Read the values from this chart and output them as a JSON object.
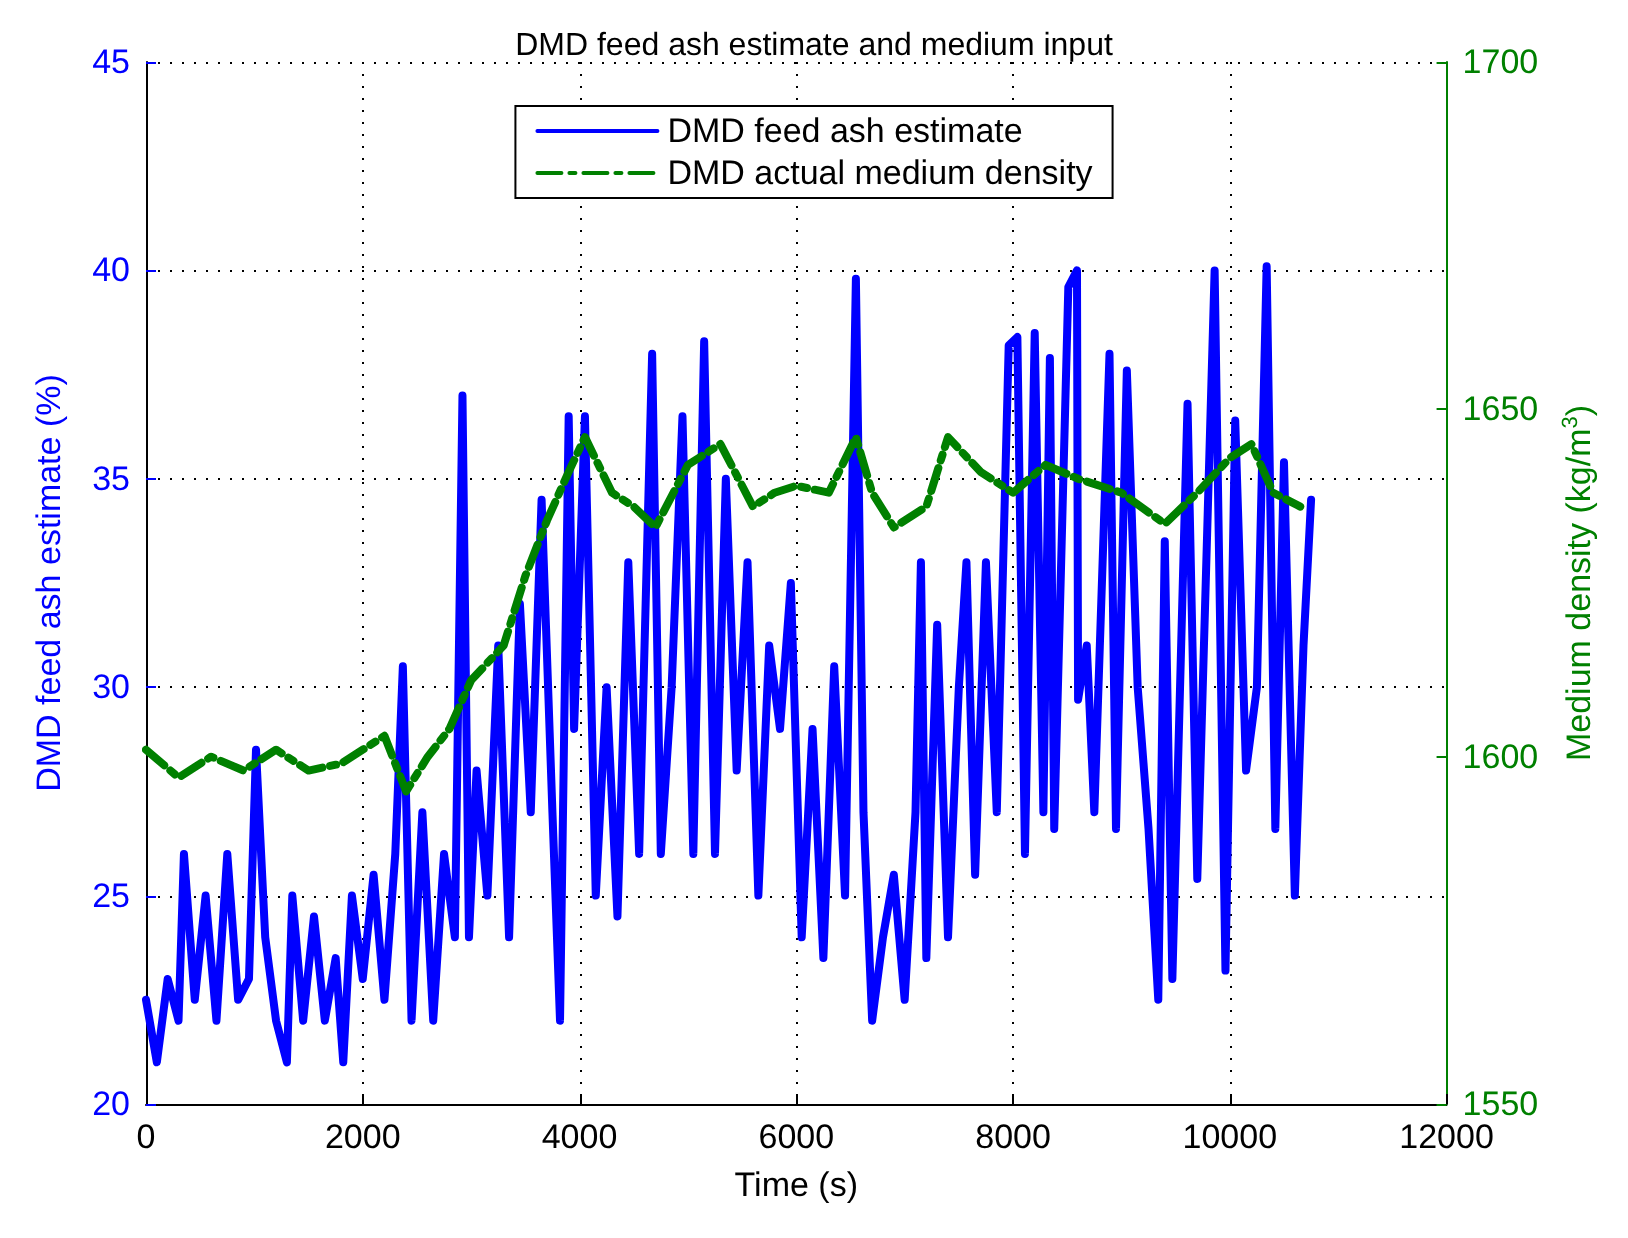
{
  "chart_data": {
    "type": "line",
    "title": "DMD feed ash estimate and medium input",
    "xlabel": "Time (s)",
    "ylabel": "DMD feed ash estimate (%)",
    "y2label": "Medium density (kg/m$^{3}$)",
    "xlim": [
      0,
      12000
    ],
    "xticks": [
      0,
      2000,
      4000,
      6000,
      8000,
      10000,
      12000
    ],
    "ylim": [
      20,
      45
    ],
    "yticks": [
      20,
      25,
      30,
      35,
      40,
      45
    ],
    "y2lim": [
      1550,
      1700
    ],
    "y2ticks": [
      1550,
      1600,
      1650,
      1700
    ],
    "grid": true,
    "legend": "top",
    "marker": "none",
    "series": [
      {
        "name": "DMD feed ash estimate",
        "color": "#0000ff",
        "line_style": "solid",
        "x": [
          0,
          100,
          200,
          300,
          350,
          450,
          550,
          650,
          750,
          850,
          950,
          1015,
          1100,
          1200,
          1300,
          1350,
          1450,
          1550,
          1650,
          1750,
          1820,
          1900,
          2000,
          2100,
          2200,
          2300,
          2370,
          2450,
          2550,
          2650,
          2750,
          2850,
          2920,
          2980,
          3050,
          3150,
          3250,
          3350,
          3450,
          3550,
          3650,
          3750,
          3820,
          3900,
          3950,
          4050,
          4150,
          4250,
          4350,
          4450,
          4550,
          4670,
          4750,
          4850,
          4950,
          5050,
          5150,
          5250,
          5350,
          5450,
          5550,
          5650,
          5750,
          5850,
          5950,
          6050,
          6150,
          6250,
          6350,
          6450,
          6550,
          6620,
          6700,
          6800,
          6900,
          7000,
          7100,
          7150,
          7200,
          7300,
          7400,
          7500,
          7570,
          7650,
          7750,
          7850,
          7960,
          8040,
          8110,
          8200,
          8280,
          8340,
          8380,
          8510,
          8590,
          8600,
          8680,
          8750,
          8890,
          8950,
          9050,
          9150,
          9250,
          9340,
          9400,
          9470,
          9610,
          9700,
          9860,
          9960,
          10050,
          10150,
          10250,
          10340,
          10420,
          10500,
          10600,
          10680,
          10750
        ],
        "values": [
          22.5,
          21,
          23,
          22,
          26,
          22.5,
          25,
          22,
          26,
          22.5,
          23,
          28.5,
          24,
          22,
          21,
          25,
          22,
          24.5,
          22,
          23.5,
          21,
          25,
          23,
          25.5,
          22.5,
          26,
          30.5,
          22,
          27,
          22,
          26,
          24,
          37,
          24,
          28,
          25,
          31,
          24,
          32,
          27,
          34.5,
          27,
          22,
          36.5,
          29,
          36.5,
          25,
          30,
          24.5,
          33,
          26,
          38,
          26,
          30,
          36.5,
          26,
          38.3,
          26,
          35,
          28,
          33,
          25,
          31,
          29,
          32.5,
          24,
          29,
          23.5,
          30.5,
          25,
          39.8,
          27,
          22,
          24,
          25.5,
          22.5,
          27,
          33,
          23.5,
          31.5,
          24,
          30,
          33,
          25.5,
          33,
          27,
          38.2,
          38.4,
          26,
          38.5,
          27,
          37.9,
          26.6,
          39.6,
          40,
          29.7,
          31,
          27,
          38,
          26.6,
          37.6,
          30,
          26.6,
          22.5,
          33.5,
          23,
          36.8,
          25.4,
          40,
          23.2,
          36.4,
          28,
          30,
          40.1,
          26.6,
          35.4,
          25,
          31,
          34.5
        ]
      },
      {
        "name": "DMD actual medium density",
        "color": "#008000",
        "line_style": "dashed",
        "axis": "y2",
        "x": [
          0,
          300,
          600,
          900,
          1200,
          1500,
          1800,
          2000,
          2200,
          2400,
          2600,
          2800,
          3000,
          3300,
          3500,
          3700,
          3900,
          4050,
          4300,
          4500,
          4700,
          5000,
          5300,
          5600,
          5800,
          6000,
          6300,
          6550,
          6700,
          6900,
          7200,
          7400,
          7700,
          8000,
          8300,
          8600,
          9000,
          9400,
          9700,
          10000,
          10200,
          10400,
          10650
        ],
        "values": [
          1601,
          1597,
          1600,
          1598,
          1601,
          1598,
          1599,
          1601,
          1603,
          1595,
          1600,
          1604,
          1611,
          1616,
          1626,
          1634,
          1641,
          1646,
          1638,
          1636,
          1633,
          1642,
          1645,
          1636,
          1638,
          1639,
          1638,
          1646,
          1638,
          1633,
          1636,
          1646,
          1641,
          1638,
          1642,
          1640,
          1638,
          1633.5,
          1638,
          1643,
          1645,
          1638,
          1636
        ]
      }
    ]
  }
}
